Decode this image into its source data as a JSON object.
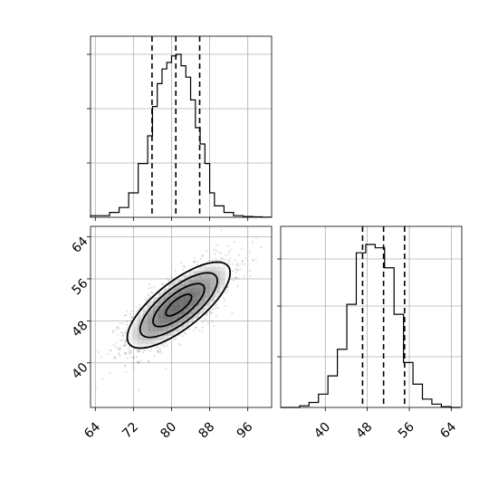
{
  "chart_data": {
    "type": "corner",
    "grid": true,
    "parameters": [
      {
        "name": "",
        "tick_labels": [
          "64",
          "72",
          "80",
          "88",
          "96"
        ],
        "range": [
          63,
          101
        ],
        "quantiles": [
          75.9,
          80.9,
          85.9
        ]
      },
      {
        "name": "",
        "tick_labels": [
          "40",
          "48",
          "56",
          "64"
        ],
        "range": [
          31.5,
          66
        ],
        "quantiles": [
          47.1,
          51.1,
          55.1
        ]
      }
    ],
    "marginal_x": {
      "bin_edges": [
        63,
        65,
        67,
        69,
        71,
        73,
        75,
        76,
        77,
        78,
        79,
        80,
        81,
        82,
        83,
        84,
        85,
        86,
        87,
        88,
        89,
        91,
        93,
        95,
        97,
        99,
        101
      ],
      "counts": [
        0.01,
        0.01,
        0.03,
        0.06,
        0.15,
        0.33,
        0.5,
        0.68,
        0.82,
        0.91,
        0.95,
        0.99,
        1.0,
        0.93,
        0.86,
        0.72,
        0.55,
        0.45,
        0.33,
        0.15,
        0.07,
        0.03,
        0.01,
        0.005,
        0.003,
        0.001
      ]
    },
    "marginal_y": {
      "bin_edges": [
        31.5,
        33.3,
        35.1,
        36.9,
        38.7,
        40.5,
        42.3,
        44.1,
        45.9,
        47.7,
        49.5,
        51.3,
        53.1,
        54.9,
        56.7,
        58.5,
        60.3,
        62.1,
        63.9,
        65.7
      ],
      "counts": [
        0.0,
        0.0,
        0.01,
        0.03,
        0.08,
        0.19,
        0.35,
        0.62,
        0.93,
        0.98,
        0.96,
        0.84,
        0.56,
        0.27,
        0.14,
        0.05,
        0.02,
        0.005,
        0.0
      ]
    },
    "joint": {
      "mean": [
        81.5,
        51.0
      ],
      "sd": [
        5.4,
        4.1
      ],
      "correlation": 0.75,
      "contour_levels_sigma": [
        0.5,
        1.0,
        1.5,
        2.0
      ],
      "scatter_points": 2200
    }
  }
}
